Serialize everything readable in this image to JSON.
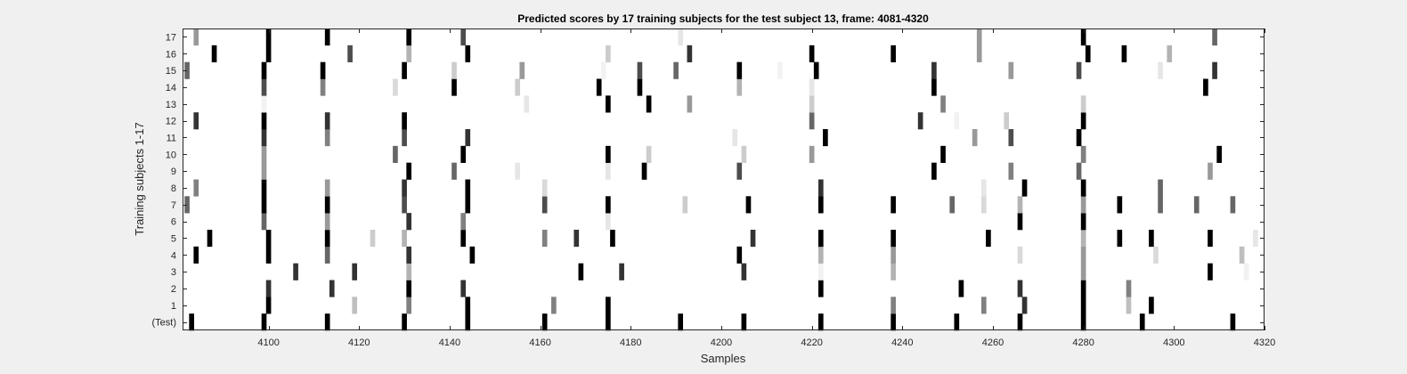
{
  "chart_data": {
    "type": "heatmap",
    "title": "Predicted scores by 17 training subjects for the test subject 13, frame: 4081-4320",
    "xlabel": "Samples",
    "ylabel": "Training subjects 1-17",
    "xlim": [
      4081,
      4320
    ],
    "xticks": [
      4100,
      4120,
      4140,
      4160,
      4180,
      4200,
      4220,
      4240,
      4260,
      4280,
      4300,
      4320
    ],
    "row_labels": [
      "(Test)",
      "1",
      "2",
      "3",
      "4",
      "5",
      "6",
      "7",
      "8",
      "9",
      "10",
      "11",
      "12",
      "13",
      "14",
      "15",
      "16",
      "17"
    ],
    "colormap": "gray",
    "background_value": 0,
    "grid": false,
    "rows": [
      {
        "label": "(Test)",
        "cells": [
          [
            4083,
            1
          ],
          [
            4099,
            1
          ],
          [
            4113,
            1
          ],
          [
            4130,
            1
          ],
          [
            4144,
            1
          ],
          [
            4161,
            1
          ],
          [
            4175,
            1
          ],
          [
            4191,
            1
          ],
          [
            4205,
            1
          ],
          [
            4222,
            1
          ],
          [
            4238,
            1
          ],
          [
            4252,
            1
          ],
          [
            4266,
            1
          ],
          [
            4280,
            1
          ],
          [
            4293,
            1
          ],
          [
            4313,
            1
          ]
        ]
      },
      {
        "label": "1",
        "cells": [
          [
            4100,
            1
          ],
          [
            4119,
            0.25
          ],
          [
            4131,
            0.5
          ],
          [
            4144,
            1
          ],
          [
            4163,
            0.5
          ],
          [
            4175,
            1
          ],
          [
            4238,
            0.5
          ],
          [
            4258,
            0.5
          ],
          [
            4267,
            0.8
          ],
          [
            4280,
            1
          ],
          [
            4290,
            0.25
          ],
          [
            4295,
            1
          ]
        ]
      },
      {
        "label": "2",
        "cells": [
          [
            4100,
            0.8
          ],
          [
            4114,
            0.8
          ],
          [
            4131,
            1
          ],
          [
            4143,
            0.8
          ],
          [
            4222,
            1
          ],
          [
            4253,
            1
          ],
          [
            4266,
            0.8
          ],
          [
            4280,
            1
          ],
          [
            4290,
            0.5
          ]
        ]
      },
      {
        "label": "3",
        "cells": [
          [
            4106,
            0.8
          ],
          [
            4119,
            0.8
          ],
          [
            4131,
            0.3
          ],
          [
            4169,
            1
          ],
          [
            4178,
            0.8
          ],
          [
            4205,
            0.8
          ],
          [
            4222,
            0.05
          ],
          [
            4238,
            0.3
          ],
          [
            4280,
            0.4
          ],
          [
            4308,
            1
          ],
          [
            4316,
            0.05
          ]
        ]
      },
      {
        "label": "4",
        "cells": [
          [
            4084,
            1
          ],
          [
            4100,
            1
          ],
          [
            4113,
            0.6
          ],
          [
            4131,
            0.8
          ],
          [
            4145,
            1
          ],
          [
            4204,
            1
          ],
          [
            4222,
            0.3
          ],
          [
            4238,
            0.4
          ],
          [
            4266,
            0.15
          ],
          [
            4280,
            0.4
          ],
          [
            4296,
            0.15
          ],
          [
            4315,
            0.25
          ]
        ]
      },
      {
        "label": "5",
        "cells": [
          [
            4087,
            1
          ],
          [
            4100,
            1
          ],
          [
            4113,
            1
          ],
          [
            4123,
            0.2
          ],
          [
            4130,
            0.3
          ],
          [
            4143,
            1
          ],
          [
            4161,
            0.5
          ],
          [
            4168,
            0.8
          ],
          [
            4176,
            1
          ],
          [
            4207,
            0.8
          ],
          [
            4222,
            1
          ],
          [
            4238,
            1
          ],
          [
            4259,
            1
          ],
          [
            4280,
            0.3
          ],
          [
            4288,
            1
          ],
          [
            4295,
            1
          ],
          [
            4308,
            1
          ],
          [
            4318,
            0.1
          ]
        ]
      },
      {
        "label": "6",
        "cells": [
          [
            4099,
            0.6
          ],
          [
            4113,
            0.4
          ],
          [
            4131,
            0.8
          ],
          [
            4143,
            0.5
          ],
          [
            4175,
            0.1
          ],
          [
            4266,
            1
          ],
          [
            4280,
            1
          ]
        ]
      },
      {
        "label": "7",
        "cells": [
          [
            4082,
            0.6
          ],
          [
            4099,
            1
          ],
          [
            4113,
            1
          ],
          [
            4130,
            0.7
          ],
          [
            4144,
            1
          ],
          [
            4161,
            0.7
          ],
          [
            4175,
            1
          ],
          [
            4192,
            0.2
          ],
          [
            4206,
            1
          ],
          [
            4222,
            1
          ],
          [
            4238,
            1
          ],
          [
            4251,
            0.6
          ],
          [
            4258,
            0.15
          ],
          [
            4266,
            0.3
          ],
          [
            4280,
            0.4
          ],
          [
            4288,
            1
          ],
          [
            4297,
            0.6
          ],
          [
            4305,
            0.6
          ],
          [
            4313,
            0.6
          ]
        ]
      },
      {
        "label": "8",
        "cells": [
          [
            4084,
            0.5
          ],
          [
            4099,
            1
          ],
          [
            4113,
            0.4
          ],
          [
            4130,
            0.8
          ],
          [
            4144,
            1
          ],
          [
            4161,
            0.15
          ],
          [
            4222,
            0.8
          ],
          [
            4258,
            0.1
          ],
          [
            4267,
            1
          ],
          [
            4280,
            1
          ],
          [
            4297,
            0.6
          ]
        ]
      },
      {
        "label": "9",
        "cells": [
          [
            4099,
            0.4
          ],
          [
            4131,
            1
          ],
          [
            4141,
            0.6
          ],
          [
            4155,
            0.1
          ],
          [
            4175,
            0.1
          ],
          [
            4183,
            1
          ],
          [
            4204,
            0.7
          ],
          [
            4247,
            1
          ],
          [
            4264,
            0.5
          ],
          [
            4279,
            0.6
          ],
          [
            4308,
            0.4
          ]
        ]
      },
      {
        "label": "10",
        "cells": [
          [
            4099,
            0.4
          ],
          [
            4128,
            0.6
          ],
          [
            4143,
            1
          ],
          [
            4175,
            1
          ],
          [
            4184,
            0.2
          ],
          [
            4205,
            0.2
          ],
          [
            4220,
            0.4
          ],
          [
            4249,
            1
          ],
          [
            4280,
            0.5
          ],
          [
            4310,
            1
          ]
        ]
      },
      {
        "label": "11",
        "cells": [
          [
            4099,
            0.8
          ],
          [
            4113,
            0.5
          ],
          [
            4130,
            0.7
          ],
          [
            4144,
            0.8
          ],
          [
            4203,
            0.1
          ],
          [
            4223,
            1
          ],
          [
            4256,
            0.4
          ],
          [
            4264,
            0.7
          ],
          [
            4279,
            1
          ]
        ]
      },
      {
        "label": "12",
        "cells": [
          [
            4084,
            0.8
          ],
          [
            4099,
            1
          ],
          [
            4113,
            0.8
          ],
          [
            4130,
            1
          ],
          [
            4220,
            0.6
          ],
          [
            4244,
            0.8
          ],
          [
            4252,
            0.05
          ],
          [
            4263,
            0.2
          ],
          [
            4280,
            1
          ]
        ]
      },
      {
        "label": "13",
        "cells": [
          [
            4099,
            0.05
          ],
          [
            4157,
            0.1
          ],
          [
            4175,
            1
          ],
          [
            4184,
            1
          ],
          [
            4193,
            0.4
          ],
          [
            4220,
            0.2
          ],
          [
            4249,
            0.5
          ],
          [
            4280,
            0.2
          ]
        ]
      },
      {
        "label": "14",
        "cells": [
          [
            4099,
            0.7
          ],
          [
            4112,
            0.5
          ],
          [
            4128,
            0.15
          ],
          [
            4141,
            1
          ],
          [
            4155,
            0.2
          ],
          [
            4173,
            1
          ],
          [
            4182,
            1
          ],
          [
            4204,
            0.3
          ],
          [
            4220,
            0.1
          ],
          [
            4247,
            1
          ],
          [
            4307,
            1
          ]
        ]
      },
      {
        "label": "15",
        "cells": [
          [
            4082,
            0.6
          ],
          [
            4099,
            1
          ],
          [
            4112,
            1
          ],
          [
            4130,
            1
          ],
          [
            4141,
            0.2
          ],
          [
            4156,
            0.4
          ],
          [
            4174,
            0.05
          ],
          [
            4182,
            0.7
          ],
          [
            4190,
            0.6
          ],
          [
            4204,
            1
          ],
          [
            4213,
            0.05
          ],
          [
            4221,
            1
          ],
          [
            4247,
            0.8
          ],
          [
            4264,
            0.4
          ],
          [
            4279,
            0.7
          ],
          [
            4297,
            0.1
          ],
          [
            4309,
            0.8
          ]
        ]
      },
      {
        "label": "16",
        "cells": [
          [
            4088,
            1
          ],
          [
            4100,
            1
          ],
          [
            4118,
            0.7
          ],
          [
            4131,
            0.3
          ],
          [
            4144,
            1
          ],
          [
            4175,
            0.2
          ],
          [
            4193,
            0.8
          ],
          [
            4220,
            1
          ],
          [
            4238,
            1
          ],
          [
            4257,
            0.4
          ],
          [
            4281,
            1
          ],
          [
            4289,
            1
          ],
          [
            4299,
            0.3
          ]
        ]
      },
      {
        "label": "17",
        "cells": [
          [
            4084,
            0.4
          ],
          [
            4100,
            1
          ],
          [
            4113,
            1
          ],
          [
            4131,
            1
          ],
          [
            4143,
            0.7
          ],
          [
            4191,
            0.1
          ],
          [
            4257,
            0.4
          ],
          [
            4280,
            1
          ],
          [
            4309,
            0.6
          ]
        ]
      }
    ]
  }
}
